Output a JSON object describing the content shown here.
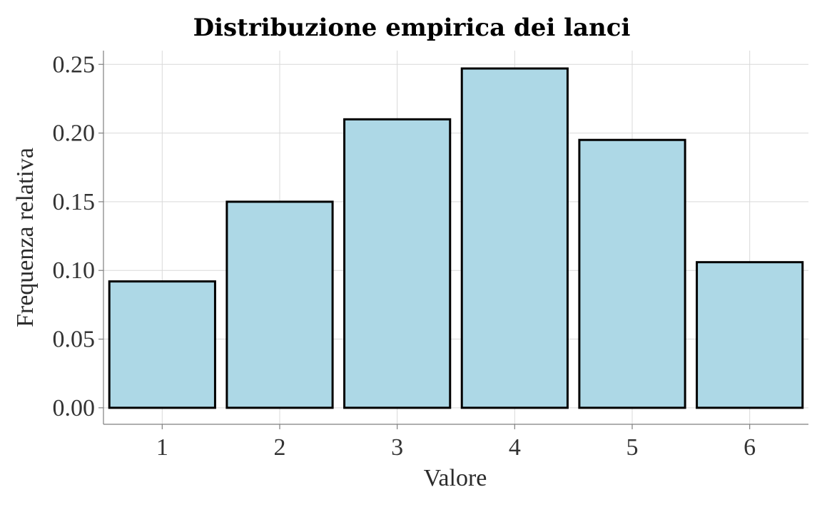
{
  "chart_data": {
    "type": "bar",
    "title": "Distribuzione empirica dei lanci",
    "xlabel": "Valore",
    "ylabel": "Frequenza relativa",
    "categories": [
      "1",
      "2",
      "3",
      "4",
      "5",
      "6"
    ],
    "values": [
      0.092,
      0.15,
      0.21,
      0.247,
      0.195,
      0.106
    ],
    "ylim": [
      -0.012,
      0.26
    ],
    "yticks": [
      "0.00",
      "0.05",
      "0.10",
      "0.15",
      "0.20",
      "0.25"
    ],
    "grid": true,
    "legend": "none",
    "colors": {
      "bar_fill": "#add8e6",
      "bar_stroke": "#000000"
    }
  }
}
